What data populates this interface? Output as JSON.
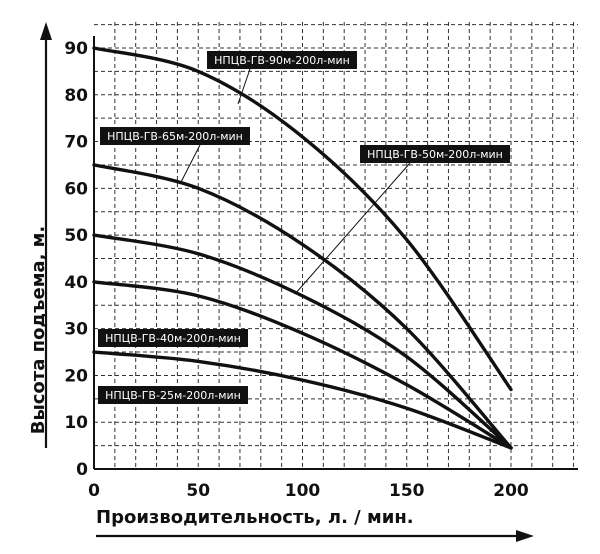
{
  "chart_data": {
    "type": "line",
    "title": "",
    "xlabel": "Производительность, л. / мин.",
    "ylabel": "Высота подъема, м.",
    "xlim": [
      0,
      240
    ],
    "ylim": [
      0,
      95
    ],
    "xticks": [
      0,
      50,
      100,
      150,
      200
    ],
    "yticks": [
      0,
      10,
      20,
      30,
      40,
      50,
      60,
      70,
      80,
      90
    ],
    "grid": true,
    "grid_style": "dashed",
    "series": [
      {
        "name": "НПЦВ-ГВ-90м-200л-мин",
        "x": [
          0,
          50,
          100,
          150,
          200
        ],
        "y": [
          90,
          85,
          71,
          49,
          17
        ]
      },
      {
        "name": "НПЦВ-ГВ-65м-200л-мин",
        "x": [
          0,
          50,
          100,
          150,
          200
        ],
        "y": [
          65,
          60,
          48,
          30,
          4.5
        ]
      },
      {
        "name": "НПЦВ-ГВ-50м-200л-мин",
        "x": [
          0,
          50,
          100,
          150,
          200
        ],
        "y": [
          50,
          46,
          37,
          24,
          4.5
        ]
      },
      {
        "name": "НПЦВ-ГВ-40м-200л-мин",
        "x": [
          0,
          50,
          100,
          150,
          200
        ],
        "y": [
          40,
          37,
          29,
          18,
          4.5
        ]
      },
      {
        "name": "НПЦВ-ГВ-25м-200л-мин",
        "x": [
          0,
          50,
          100,
          150,
          200
        ],
        "y": [
          25,
          23,
          19,
          13,
          4.5
        ]
      }
    ],
    "legend": {
      "placement": "inline-callouts",
      "entries": [
        "НПЦВ-ГВ-90м-200л-мин",
        "НПЦВ-ГВ-65м-200л-мин",
        "НПЦВ-ГВ-50м-200л-мин",
        "НПЦВ-ГВ-40м-200л-мин",
        "НПЦВ-ГВ-25м-200л-мин"
      ]
    }
  },
  "colors": {
    "line": "#111111",
    "grid": "#333333",
    "label_bg": "#111111",
    "label_text": "#ffffff"
  }
}
